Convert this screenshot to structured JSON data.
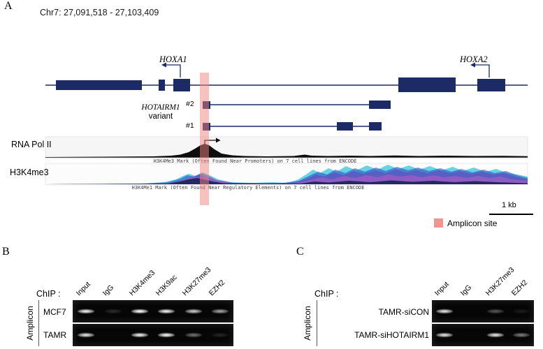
{
  "colors": {
    "navy": "#1c2a66",
    "amplicon": "#f0837e",
    "track_cyan": "#35c5dc",
    "track_blue": "#2b50c8",
    "track_purple": "#6a3fb5",
    "track_magenta": "#c45ac4",
    "track_dark": "#141e50"
  },
  "panelA": {
    "label": "A",
    "coords": "Chr7: 27,091,518 - 27,103,409",
    "genes": {
      "hoxa1": "HOXA1",
      "hoxa2": "HOXA2"
    },
    "variant_line1": "HOTAIRM1",
    "variant_line2": "variant",
    "variant2": "#2",
    "variant1": "#1",
    "rna_pol_ii": "RNA Pol II",
    "h3k4me3": "H3K4me3",
    "track1_caption": "H3K4Me3 Mark (Often Found Near Promoters) on 7 cell lines from ENCODE",
    "track2_caption": "H3K4Me1 Mark (Often Found Near Regulatory Elements) on 7 cell lines from ENCODE",
    "scale_label": "1 kb",
    "legend_label": "Amplicon site"
  },
  "panelB": {
    "label": "B",
    "chip_label": "ChIP :",
    "side_label": "Amplicon",
    "lanes": [
      "Input",
      "IgG",
      "H3K4me3",
      "H3K9ac",
      "H3K27me3",
      "EZH2"
    ],
    "rows": [
      {
        "name": "MCF7",
        "bands": [
          0.9,
          0.14,
          0.95,
          0.9,
          0.75,
          0.6
        ]
      },
      {
        "name": "TAMR",
        "bands": [
          0.85,
          0.03,
          0.9,
          0.92,
          0.4,
          0.12
        ]
      }
    ]
  },
  "panelC": {
    "label": "C",
    "chip_label": "ChIP :",
    "side_label": "Amplicon",
    "lanes": [
      "Input",
      "IgG",
      "H3K27me3",
      "EZH2"
    ],
    "rows": [
      {
        "name": "TAMR-siCON",
        "bands": [
          0.85,
          0.03,
          0.3,
          0.08
        ]
      },
      {
        "name": "TAMR-siHOTAIRM1",
        "bands": [
          0.85,
          0.03,
          0.85,
          0.45
        ]
      }
    ]
  }
}
